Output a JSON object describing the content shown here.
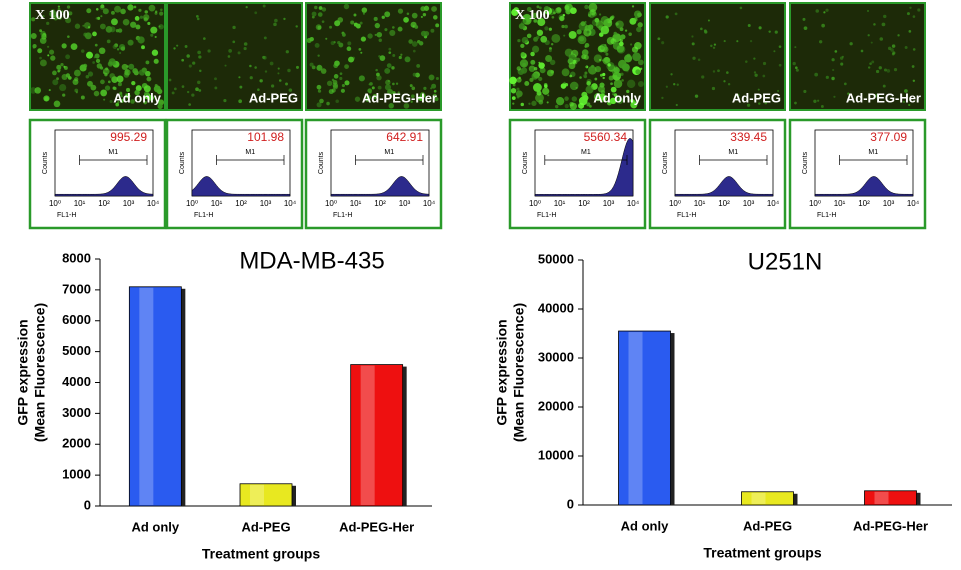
{
  "panels": [
    {
      "magnification": "X 100",
      "images": [
        {
          "label": "Ad only"
        },
        {
          "label": "Ad-PEG"
        },
        {
          "label": "Ad-PEG-Her"
        }
      ],
      "histograms": [
        {
          "value": 995.29
        },
        {
          "value": 101.98
        },
        {
          "value": 642.91
        }
      ]
    },
    {
      "magnification": "X 100",
      "images": [
        {
          "label": "Ad only"
        },
        {
          "label": "Ad-PEG"
        },
        {
          "label": "Ad-PEG-Her"
        }
      ],
      "histograms": [
        {
          "value": 5560.34
        },
        {
          "value": 339.45
        },
        {
          "value": 377.09
        }
      ]
    }
  ],
  "histogram_axes": {
    "x_label": "FL1-H",
    "y_label": "Counts",
    "marker": "M1",
    "xtick_labels": [
      "10⁰",
      "10¹",
      "10²",
      "10³",
      "10⁴"
    ]
  },
  "chart_data": [
    {
      "type": "bar",
      "title": "MDA-MB-435",
      "categories": [
        "Ad only",
        "Ad-PEG",
        "Ad-PEG-Her"
      ],
      "values": [
        7100,
        720,
        4580
      ],
      "colors": [
        "#2a5bf0",
        "#e8e820",
        "#ee1010"
      ],
      "ylim": [
        0,
        8000
      ],
      "yticks": [
        0,
        1000,
        2000,
        3000,
        4000,
        5000,
        6000,
        7000,
        8000
      ],
      "ylabel": [
        "GFP expression",
        "(Mean Fluorescence)"
      ],
      "xlabel": "Treatment groups"
    },
    {
      "type": "bar",
      "title": "U251N",
      "categories": [
        "Ad only",
        "Ad-PEG",
        "Ad-PEG-Her"
      ],
      "values": [
        35500,
        2700,
        2900
      ],
      "colors": [
        "#2a5bf0",
        "#e8e820",
        "#ee1010"
      ],
      "ylim": [
        0,
        50000
      ],
      "yticks": [
        0,
        10000,
        20000,
        30000,
        40000,
        50000
      ],
      "ylabel": [
        "GFP expression",
        "(Mean Fluorescence)"
      ],
      "xlabel": "Treatment groups"
    }
  ]
}
